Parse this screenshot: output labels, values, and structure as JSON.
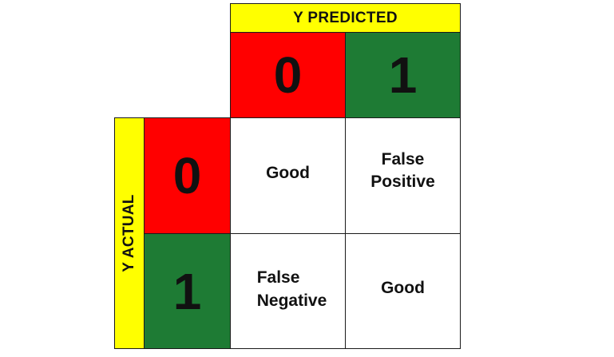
{
  "colors": {
    "header": "#ffff00",
    "zero": "#ff0000",
    "one": "#1e7b34",
    "cell": "#ffffff"
  },
  "predicted": {
    "title": "Y PREDICTED",
    "labels": [
      "0",
      "1"
    ]
  },
  "actual": {
    "title": "Y ACTUAL",
    "labels": [
      "0",
      "1"
    ]
  },
  "cells": {
    "actual0_pred0": "Good",
    "actual0_pred1": "False\nPositive",
    "actual1_pred0": "False\nNegative",
    "actual1_pred1": "Good"
  }
}
